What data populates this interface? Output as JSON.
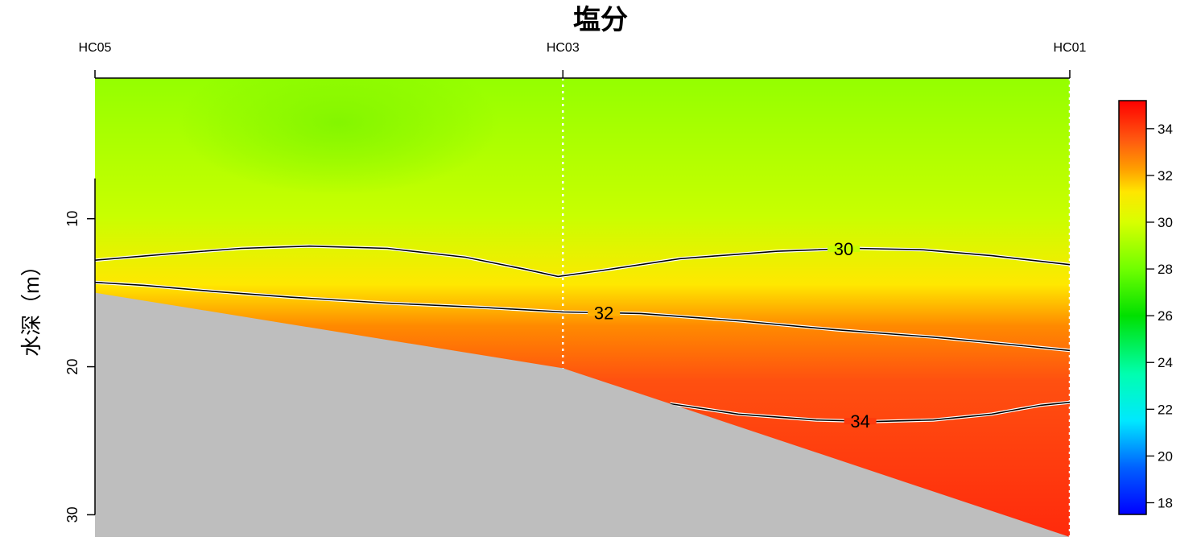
{
  "chart_data": {
    "type": "heatmap",
    "title": "塩分",
    "xlabel": "",
    "ylabel": "水深（m）",
    "stations": [
      {
        "name": "HC05",
        "distance": 0
      },
      {
        "name": "HC03",
        "distance": 0.48
      },
      {
        "name": "HC01",
        "distance": 1
      }
    ],
    "x_range": [
      0,
      1
    ],
    "y_range": [
      0.5,
      31.5
    ],
    "y_ticks": [
      10,
      20,
      30
    ],
    "y_tick_labels": [
      "10",
      "20",
      "30"
    ],
    "bottom_depth": [
      {
        "x": 0,
        "depth": 15
      },
      {
        "x": 0.48,
        "depth": 20.1
      },
      {
        "x": 0.59,
        "depth": 22.5
      },
      {
        "x": 1,
        "depth": 31.5
      }
    ],
    "contours": [
      {
        "level": 30,
        "label": "30",
        "label_x": 0.768,
        "points": [
          [
            0,
            12.8
          ],
          [
            0.08,
            12.35
          ],
          [
            0.15,
            12.0
          ],
          [
            0.22,
            11.85
          ],
          [
            0.3,
            12.0
          ],
          [
            0.38,
            12.6
          ],
          [
            0.44,
            13.4
          ],
          [
            0.475,
            13.9
          ],
          [
            0.52,
            13.5
          ],
          [
            0.6,
            12.7
          ],
          [
            0.7,
            12.2
          ],
          [
            0.78,
            12.0
          ],
          [
            0.85,
            12.1
          ],
          [
            0.92,
            12.5
          ],
          [
            1,
            13.1
          ]
        ]
      },
      {
        "level": 32,
        "label": "32",
        "label_x": 0.522,
        "points": [
          [
            0,
            14.3
          ],
          [
            0.05,
            14.5
          ],
          [
            0.12,
            14.9
          ],
          [
            0.2,
            15.3
          ],
          [
            0.3,
            15.7
          ],
          [
            0.4,
            16.0
          ],
          [
            0.48,
            16.3
          ],
          [
            0.56,
            16.4
          ],
          [
            0.66,
            16.9
          ],
          [
            0.76,
            17.5
          ],
          [
            0.86,
            18.0
          ],
          [
            0.94,
            18.5
          ],
          [
            1,
            18.9
          ]
        ]
      },
      {
        "level": 34,
        "label": "34",
        "label_x": 0.785,
        "points": [
          [
            0.59,
            22.5
          ],
          [
            0.66,
            23.2
          ],
          [
            0.74,
            23.6
          ],
          [
            0.8,
            23.7
          ],
          [
            0.86,
            23.6
          ],
          [
            0.92,
            23.2
          ],
          [
            0.97,
            22.6
          ],
          [
            1,
            22.4
          ]
        ]
      }
    ],
    "colorbar": {
      "min": 17.5,
      "max": 35.2,
      "ticks": [
        18,
        20,
        22,
        24,
        26,
        28,
        30,
        32,
        34
      ],
      "tick_labels": [
        "18",
        "20",
        "22",
        "24",
        "26",
        "28",
        "30",
        "32",
        "34"
      ],
      "stops": [
        {
          "value": 17.5,
          "color": "#0000ff"
        },
        {
          "value": 19.5,
          "color": "#0060ff"
        },
        {
          "value": 21.5,
          "color": "#00e8ff"
        },
        {
          "value": 23.5,
          "color": "#00ffb0"
        },
        {
          "value": 26.0,
          "color": "#00e000"
        },
        {
          "value": 28.0,
          "color": "#70ff00"
        },
        {
          "value": 30.0,
          "color": "#d8ff00"
        },
        {
          "value": 31.3,
          "color": "#ffe600"
        },
        {
          "value": 32.3,
          "color": "#ff9d00"
        },
        {
          "value": 33.5,
          "color": "#ff5a10"
        },
        {
          "value": 35.2,
          "color": "#ff0000"
        }
      ]
    },
    "field_colors": {
      "surface": "#94ff00",
      "surface_dark": "#80f500",
      "mid": "#c8ff00",
      "halocline": "#ffe800",
      "orange": "#ff8a00",
      "deep": "#ff5010",
      "bottom": "#ff2a0c",
      "land": "#bebebe"
    }
  }
}
